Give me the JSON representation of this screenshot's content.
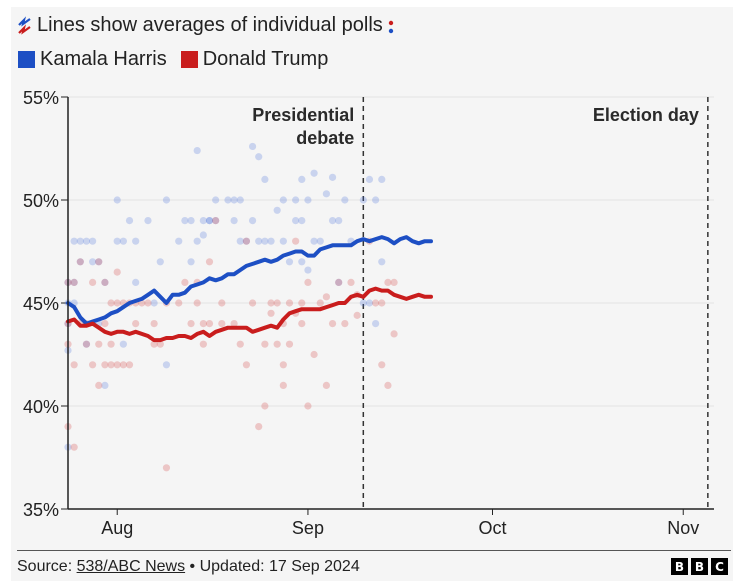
{
  "header": {
    "title": "Lines show averages of individual polls",
    "title_colon": ":",
    "title_icon": "poll-lines-icon"
  },
  "legend": [
    {
      "label": "Kamala Harris",
      "color": "#1d4fc4"
    },
    {
      "label": "Donald Trump",
      "color": "#c91d1d"
    }
  ],
  "footer": {
    "source_prefix": "Source: ",
    "source_link": "538/ABC News",
    "separator": " • ",
    "updated": "Updated: 17 Sep 2024",
    "logo_letters": [
      "B",
      "B",
      "C"
    ]
  },
  "chart_data": {
    "type": "line",
    "title": "Lines show averages of individual polls",
    "xlabel": "",
    "ylabel": "",
    "x_domain": [
      "2024-07-24",
      "2024-11-06"
    ],
    "ylim": [
      35,
      55
    ],
    "y_ticks": [
      35,
      40,
      45,
      50,
      55
    ],
    "y_tick_labels": [
      "35%",
      "40%",
      "45%",
      "50%",
      "55%"
    ],
    "x_ticks": [
      {
        "date": "2024-08-01",
        "label": "Aug"
      },
      {
        "date": "2024-09-01",
        "label": "Sep"
      },
      {
        "date": "2024-10-01",
        "label": "Oct"
      },
      {
        "date": "2024-11-01",
        "label": "Nov"
      }
    ],
    "grid": true,
    "annotations": [
      {
        "date": "2024-09-10",
        "label_lines": [
          "Presidential",
          "debate"
        ],
        "style": "dashed"
      },
      {
        "date": "2024-11-05",
        "label_lines": [
          "Election day"
        ],
        "style": "dashed"
      }
    ],
    "series": [
      {
        "name": "Kamala Harris",
        "color": "#1d4fc4",
        "average": [
          [
            0,
            45.0
          ],
          [
            1,
            44.8
          ],
          [
            2,
            44.3
          ],
          [
            3,
            44.0
          ],
          [
            4,
            44.1
          ],
          [
            5,
            44.2
          ],
          [
            6,
            44.3
          ],
          [
            7,
            44.5
          ],
          [
            8,
            44.6
          ],
          [
            9,
            44.8
          ],
          [
            10,
            45.0
          ],
          [
            11,
            45.1
          ],
          [
            12,
            45.2
          ],
          [
            13,
            45.4
          ],
          [
            14,
            45.6
          ],
          [
            15,
            45.3
          ],
          [
            16,
            45.0
          ],
          [
            17,
            45.4
          ],
          [
            18,
            45.4
          ],
          [
            19,
            45.5
          ],
          [
            20,
            45.8
          ],
          [
            21,
            45.9
          ],
          [
            22,
            46.0
          ],
          [
            23,
            46.2
          ],
          [
            24,
            46.1
          ],
          [
            25,
            46.2
          ],
          [
            26,
            46.4
          ],
          [
            27,
            46.4
          ],
          [
            28,
            46.6
          ],
          [
            29,
            46.8
          ],
          [
            30,
            46.9
          ],
          [
            31,
            47.0
          ],
          [
            32,
            47.1
          ],
          [
            33,
            47.0
          ],
          [
            34,
            47.1
          ],
          [
            35,
            47.3
          ],
          [
            36,
            47.4
          ],
          [
            37,
            47.5
          ],
          [
            38,
            47.5
          ],
          [
            39,
            47.3
          ],
          [
            40,
            47.3
          ],
          [
            41,
            47.6
          ],
          [
            42,
            47.7
          ],
          [
            43,
            47.8
          ],
          [
            44,
            47.8
          ],
          [
            45,
            47.8
          ],
          [
            46,
            47.8
          ],
          [
            47,
            48.0
          ],
          [
            48,
            48.1
          ],
          [
            49,
            48.0
          ],
          [
            50,
            48.1
          ],
          [
            51,
            48.2
          ],
          [
            52,
            48.1
          ],
          [
            53,
            47.9
          ],
          [
            54,
            48.1
          ],
          [
            55,
            48.2
          ],
          [
            56,
            48.0
          ],
          [
            57,
            47.9
          ],
          [
            58,
            48.0
          ],
          [
            59,
            48.0
          ]
        ],
        "polls": [
          [
            0,
            46
          ],
          [
            0,
            45
          ],
          [
            0,
            44
          ],
          [
            0,
            42.7
          ],
          [
            0,
            38
          ],
          [
            1,
            48
          ],
          [
            1,
            45
          ],
          [
            1,
            46
          ],
          [
            2,
            48
          ],
          [
            2,
            47
          ],
          [
            3,
            48
          ],
          [
            3,
            43
          ],
          [
            4,
            48
          ],
          [
            4,
            47
          ],
          [
            5,
            47
          ],
          [
            5,
            44
          ],
          [
            6,
            46
          ],
          [
            6,
            41
          ],
          [
            8,
            50
          ],
          [
            8,
            48
          ],
          [
            9,
            48
          ],
          [
            9,
            43
          ],
          [
            10,
            49
          ],
          [
            11,
            48
          ],
          [
            11,
            46
          ],
          [
            13,
            49
          ],
          [
            14,
            45
          ],
          [
            15,
            47
          ],
          [
            16,
            50
          ],
          [
            16,
            42
          ],
          [
            18,
            48
          ],
          [
            19,
            49
          ],
          [
            20,
            49
          ],
          [
            20,
            47
          ],
          [
            21,
            52.4
          ],
          [
            21,
            48
          ],
          [
            22,
            49
          ],
          [
            22,
            48.3
          ],
          [
            23,
            49
          ],
          [
            23,
            49
          ],
          [
            24,
            50
          ],
          [
            24,
            49
          ],
          [
            26,
            50
          ],
          [
            27,
            50
          ],
          [
            27,
            49
          ],
          [
            28,
            50
          ],
          [
            28,
            48
          ],
          [
            29,
            48
          ],
          [
            30,
            52.6
          ],
          [
            30,
            49
          ],
          [
            31,
            52.1
          ],
          [
            31,
            48
          ],
          [
            32,
            48
          ],
          [
            32,
            51
          ],
          [
            33,
            48
          ],
          [
            34,
            49.5
          ],
          [
            35,
            50
          ],
          [
            35,
            48
          ],
          [
            36,
            47
          ],
          [
            37,
            50
          ],
          [
            37,
            49
          ],
          [
            38,
            51
          ],
          [
            38,
            49
          ],
          [
            38,
            47
          ],
          [
            39,
            50
          ],
          [
            39,
            46.6
          ],
          [
            40,
            51.3
          ],
          [
            40,
            48
          ],
          [
            41,
            48
          ],
          [
            42,
            50.3
          ],
          [
            43,
            51.1
          ],
          [
            43,
            49
          ],
          [
            44,
            49
          ],
          [
            44,
            46
          ],
          [
            45,
            50
          ],
          [
            46,
            48
          ],
          [
            48,
            50
          ],
          [
            48,
            45
          ],
          [
            49,
            51
          ],
          [
            49,
            45
          ],
          [
            50,
            50
          ],
          [
            50,
            44
          ],
          [
            51,
            51
          ],
          [
            51,
            47
          ]
        ]
      },
      {
        "name": "Donald Trump",
        "color": "#c91d1d",
        "average": [
          [
            0,
            44.1
          ],
          [
            1,
            44.2
          ],
          [
            2,
            43.9
          ],
          [
            3,
            43.9
          ],
          [
            4,
            44.0
          ],
          [
            5,
            43.8
          ],
          [
            6,
            43.6
          ],
          [
            7,
            43.5
          ],
          [
            8,
            43.6
          ],
          [
            9,
            43.6
          ],
          [
            10,
            43.5
          ],
          [
            11,
            43.6
          ],
          [
            12,
            43.5
          ],
          [
            13,
            43.4
          ],
          [
            14,
            43.2
          ],
          [
            15,
            43.2
          ],
          [
            16,
            43.3
          ],
          [
            17,
            43.3
          ],
          [
            18,
            43.4
          ],
          [
            19,
            43.4
          ],
          [
            20,
            43.3
          ],
          [
            21,
            43.5
          ],
          [
            22,
            43.6
          ],
          [
            23,
            43.4
          ],
          [
            24,
            43.6
          ],
          [
            25,
            43.7
          ],
          [
            26,
            43.8
          ],
          [
            27,
            43.8
          ],
          [
            28,
            43.8
          ],
          [
            29,
            43.8
          ],
          [
            30,
            43.6
          ],
          [
            31,
            43.7
          ],
          [
            32,
            43.8
          ],
          [
            33,
            43.9
          ],
          [
            34,
            43.8
          ],
          [
            35,
            44.2
          ],
          [
            36,
            44.5
          ],
          [
            37,
            44.6
          ],
          [
            38,
            44.7
          ],
          [
            39,
            44.7
          ],
          [
            40,
            44.7
          ],
          [
            41,
            44.7
          ],
          [
            42,
            44.8
          ],
          [
            43,
            44.9
          ],
          [
            44,
            45.0
          ],
          [
            45,
            45.0
          ],
          [
            46,
            45.3
          ],
          [
            47,
            45.4
          ],
          [
            48,
            45.3
          ],
          [
            49,
            45.6
          ],
          [
            50,
            45.7
          ],
          [
            51,
            45.6
          ],
          [
            52,
            45.6
          ],
          [
            53,
            45.4
          ],
          [
            54,
            45.3
          ],
          [
            55,
            45.2
          ],
          [
            56,
            45.3
          ],
          [
            57,
            45.4
          ],
          [
            58,
            45.3
          ],
          [
            59,
            45.3
          ]
        ],
        "polls": [
          [
            0,
            44
          ],
          [
            0,
            43
          ],
          [
            0,
            39
          ],
          [
            0,
            46
          ],
          [
            1,
            46
          ],
          [
            1,
            42
          ],
          [
            1,
            38
          ],
          [
            2,
            47
          ],
          [
            2,
            44
          ],
          [
            3,
            44
          ],
          [
            3,
            43
          ],
          [
            4,
            46
          ],
          [
            4,
            42
          ],
          [
            5,
            47
          ],
          [
            5,
            43
          ],
          [
            5,
            41
          ],
          [
            6,
            46
          ],
          [
            6,
            44
          ],
          [
            6,
            42
          ],
          [
            7,
            45
          ],
          [
            7,
            43
          ],
          [
            7,
            42
          ],
          [
            8,
            46.5
          ],
          [
            8,
            45
          ],
          [
            8,
            42
          ],
          [
            9,
            45
          ],
          [
            9,
            42
          ],
          [
            10,
            45
          ],
          [
            10,
            42
          ],
          [
            11,
            45
          ],
          [
            11,
            44
          ],
          [
            12,
            45
          ],
          [
            13,
            45
          ],
          [
            14,
            44
          ],
          [
            14,
            43
          ],
          [
            15,
            43
          ],
          [
            16,
            45
          ],
          [
            16,
            37
          ],
          [
            18,
            45
          ],
          [
            19,
            46
          ],
          [
            20,
            44
          ],
          [
            21,
            45
          ],
          [
            21,
            46
          ],
          [
            22,
            44
          ],
          [
            22,
            43
          ],
          [
            23,
            47
          ],
          [
            23,
            44
          ],
          [
            24,
            49
          ],
          [
            25,
            45
          ],
          [
            25,
            44
          ],
          [
            27,
            44
          ],
          [
            28,
            43
          ],
          [
            29,
            48
          ],
          [
            29,
            42
          ],
          [
            30,
            45
          ],
          [
            31,
            39
          ],
          [
            32,
            43
          ],
          [
            32,
            40
          ],
          [
            33,
            45
          ],
          [
            33,
            44.5
          ],
          [
            34,
            45
          ],
          [
            34,
            43
          ],
          [
            35,
            44
          ],
          [
            35,
            41
          ],
          [
            35,
            42
          ],
          [
            36,
            43
          ],
          [
            36,
            45
          ],
          [
            37,
            48
          ],
          [
            37,
            44.5
          ],
          [
            38,
            45
          ],
          [
            38,
            44
          ],
          [
            39,
            46
          ],
          [
            39,
            40
          ],
          [
            40,
            42.5
          ],
          [
            41,
            45
          ],
          [
            42,
            45.3
          ],
          [
            42,
            41
          ],
          [
            43,
            44
          ],
          [
            44,
            46
          ],
          [
            45,
            44
          ],
          [
            46,
            46
          ],
          [
            47,
            44.4
          ],
          [
            47,
            45.4
          ],
          [
            49,
            48
          ],
          [
            50,
            45
          ],
          [
            51,
            45
          ],
          [
            51,
            42
          ],
          [
            52,
            46
          ],
          [
            52,
            41
          ],
          [
            53,
            46
          ],
          [
            53,
            43.5
          ]
        ]
      }
    ]
  }
}
